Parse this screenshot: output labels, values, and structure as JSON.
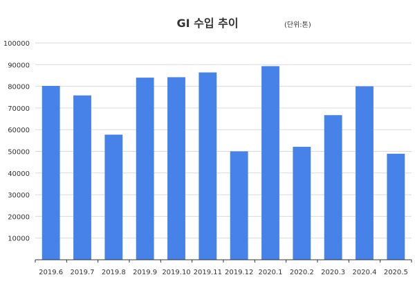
{
  "chart_data": {
    "type": "bar",
    "title": "GI 수입 추이",
    "subtitle": "(단위:톤)",
    "xlabel": "",
    "ylabel": "",
    "categories": [
      "2019.6",
      "2019.7",
      "2019.8",
      "2019.9",
      "2019.10",
      "2019.11",
      "2019.12",
      "2020.1",
      "2020.2",
      "2020.3",
      "2020.4",
      "2020.5"
    ],
    "values": [
      80200,
      75800,
      57700,
      84000,
      84200,
      86400,
      50000,
      89300,
      52100,
      66700,
      80000,
      48900
    ],
    "ylim": [
      0,
      100000
    ],
    "yticks": [
      10000,
      20000,
      30000,
      40000,
      50000,
      60000,
      70000,
      80000,
      90000,
      100000
    ],
    "ytick_labels": [
      "10000",
      "20000",
      "30000",
      "40000",
      "50000",
      "60000",
      "70000",
      "80000",
      "90000",
      "100000"
    ],
    "grid": true,
    "legend": "none",
    "colors": {
      "bar": "#4682e8",
      "grid": "#d9d9d9",
      "axis": "#333333",
      "text": "#333333"
    }
  }
}
